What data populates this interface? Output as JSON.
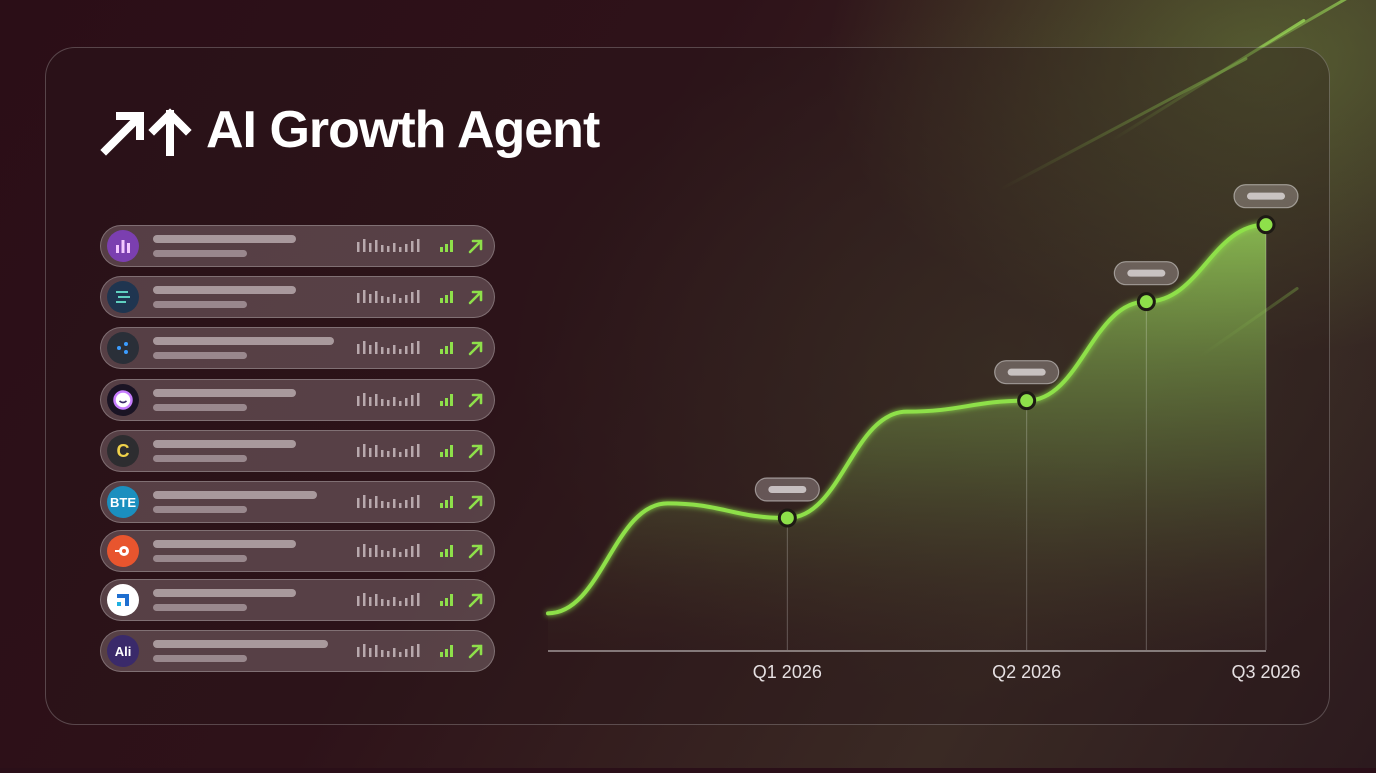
{
  "header": {
    "title": "AI Growth Agent",
    "icon": "double-up-arrow-icon"
  },
  "list": {
    "items": [
      {
        "logo_text": "",
        "logo_icon": "bar-chart-logo-icon",
        "logo_color": "#7b3fb0"
      },
      {
        "logo_text": "",
        "logo_icon": "lines-logo-icon",
        "logo_color": "#1f3550"
      },
      {
        "logo_text": "",
        "logo_icon": "dots-logo-icon",
        "logo_color": "#2a2f38"
      },
      {
        "logo_text": "",
        "logo_icon": "smile-logo-icon",
        "logo_color": "#1a1424"
      },
      {
        "logo_text": "C",
        "logo_icon": "letter-logo-icon",
        "logo_color": "#2d2d30"
      },
      {
        "logo_text": "BTE",
        "logo_icon": "text-logo-icon",
        "logo_color": "#1b8fbf"
      },
      {
        "logo_text": "",
        "logo_icon": "rocket-logo-icon",
        "logo_color": "#e8552e"
      },
      {
        "logo_text": "",
        "logo_icon": "corner-arrow-logo-icon",
        "logo_color": "#ffffff"
      },
      {
        "logo_text": "Ali",
        "logo_icon": "text-logo-icon",
        "logo_color": "#3a2a6a"
      }
    ]
  },
  "colors": {
    "accent": "#8ee04a",
    "background": "#2a0f18"
  },
  "chart_data": {
    "type": "area",
    "title": "",
    "xlabel": "",
    "ylabel": "",
    "x_labels": [
      "Q1 2026",
      "Q2 2026",
      "Q3 2026"
    ],
    "x": [
      0,
      0.5,
      1,
      1.5,
      2,
      2.5,
      3
    ],
    "values": [
      10,
      40,
      36,
      65,
      68,
      95,
      116
    ],
    "ylim": [
      0,
      120
    ],
    "markers_at": [
      1,
      2,
      2.5,
      3
    ],
    "grid": false,
    "legend": "none"
  }
}
